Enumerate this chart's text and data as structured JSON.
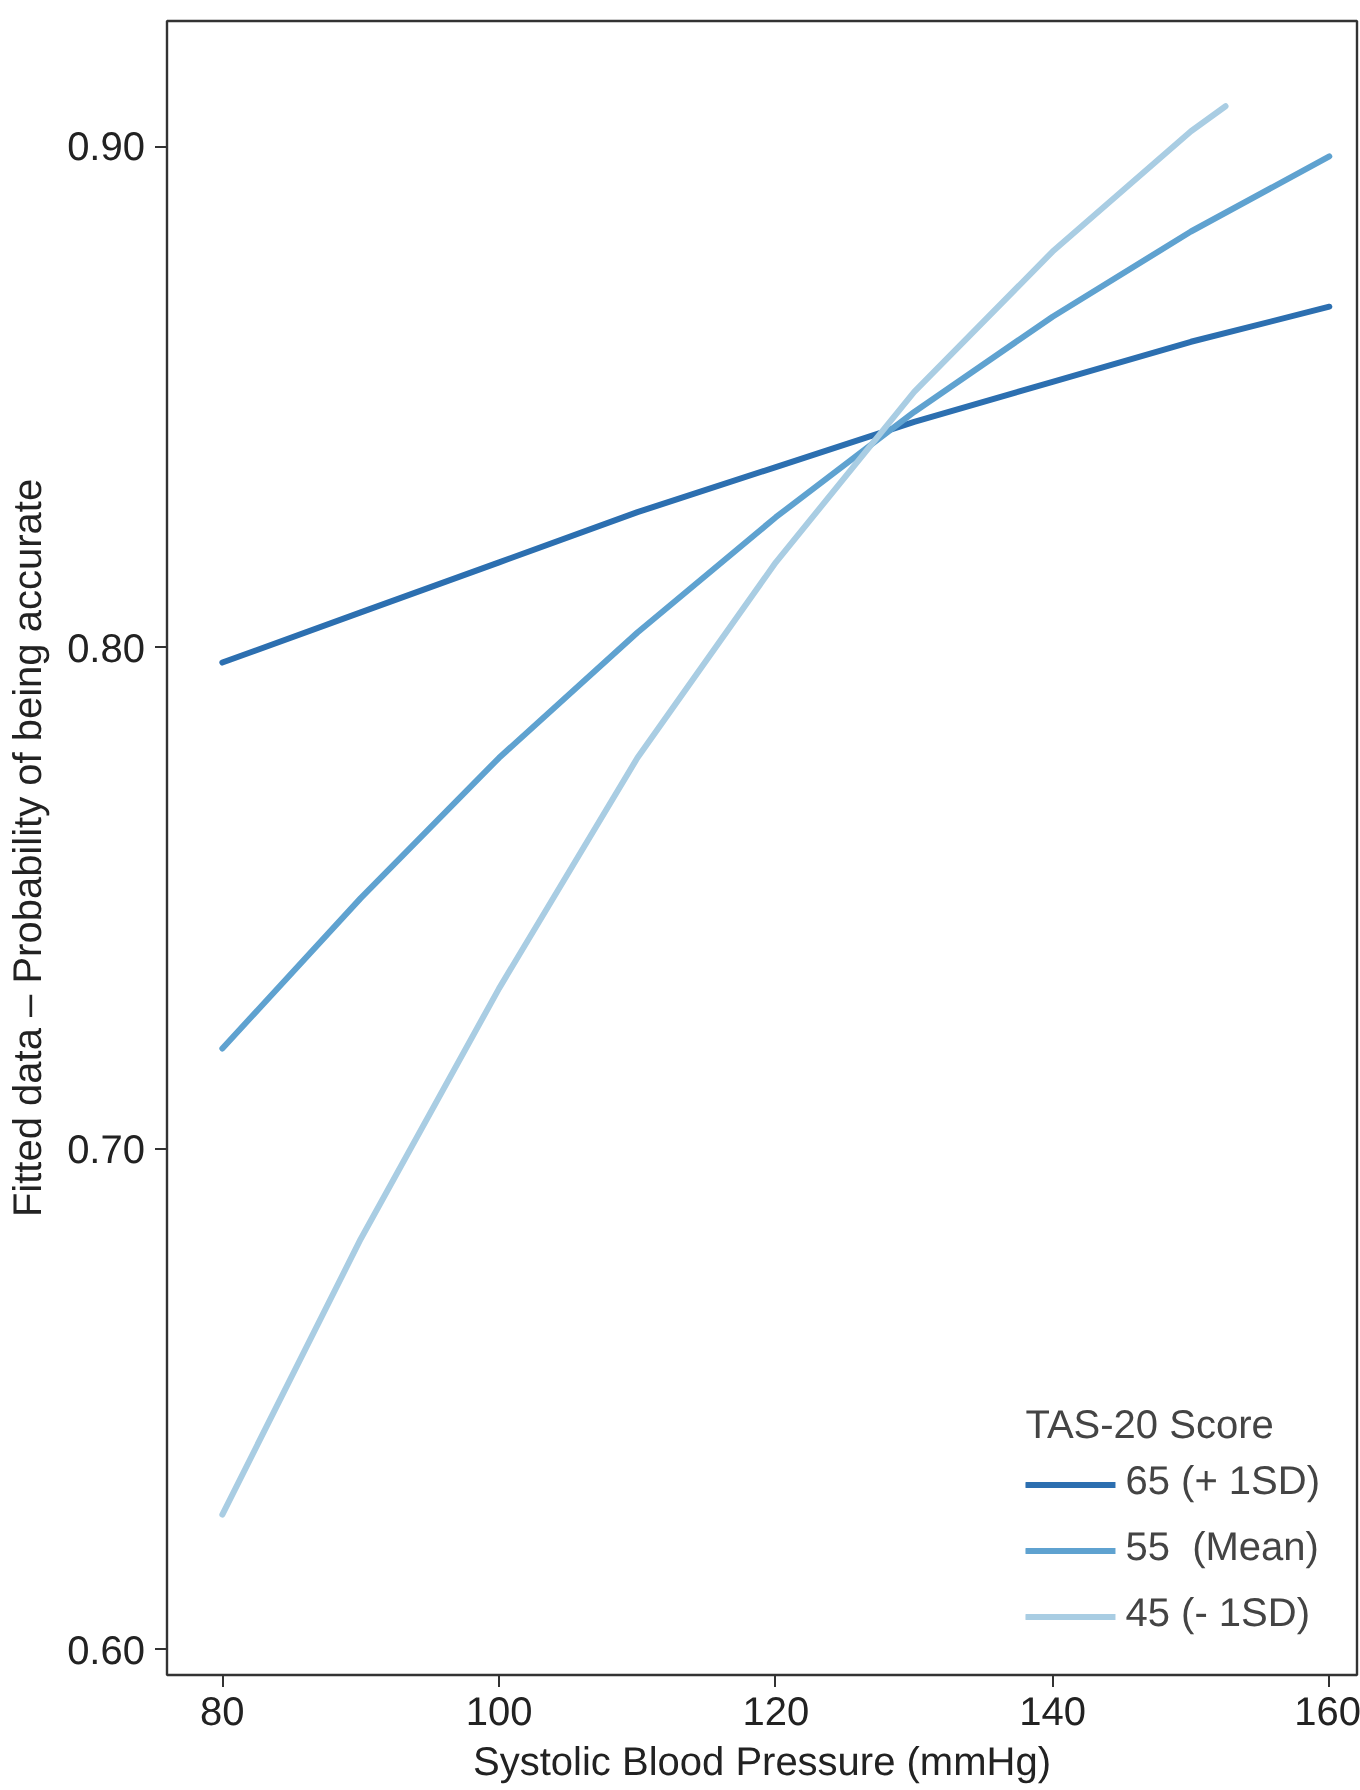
{
  "chart_data": {
    "type": "line",
    "xlabel": "Systolic Blood Pressure (mmHg)",
    "ylabel": "Fitted data – Probability of being accurate",
    "legend_title": "TAS-20 Score",
    "x": [
      80,
      90,
      100,
      110,
      120,
      130,
      140,
      150,
      160
    ],
    "series": [
      {
        "name": "65 (+ 1SD)",
        "color": "#2c6fb0",
        "values": [
          0.797,
          0.807,
          0.817,
          0.827,
          0.836,
          0.845,
          0.853,
          0.861,
          0.868
        ]
      },
      {
        "name": "55  (Mean)",
        "color": "#5fa2d0",
        "values": [
          0.72,
          0.75,
          0.778,
          0.803,
          0.826,
          0.847,
          0.866,
          0.883,
          0.898
        ]
      },
      {
        "name": "45 (- 1SD)",
        "color": "#a9cde3",
        "x": [
          80,
          90,
          100,
          110,
          120,
          130,
          140,
          150,
          152.5
        ],
        "values": [
          0.627,
          0.682,
          0.732,
          0.778,
          0.817,
          0.851,
          0.879,
          0.903,
          0.908
        ]
      }
    ],
    "xlim": [
      76,
      162
    ],
    "ylim": [
      0.595,
      0.925
    ],
    "xticks": [
      80,
      100,
      120,
      140,
      160
    ],
    "yticks": [
      {
        "value": 0.6,
        "label": "0.60"
      },
      {
        "value": 0.7,
        "label": "0.70"
      },
      {
        "value": 0.8,
        "label": "0.80"
      },
      {
        "value": 0.9,
        "label": "0.90"
      }
    ],
    "grid": false,
    "legend": "bottom right",
    "marker": "none",
    "line_style": "solid"
  }
}
